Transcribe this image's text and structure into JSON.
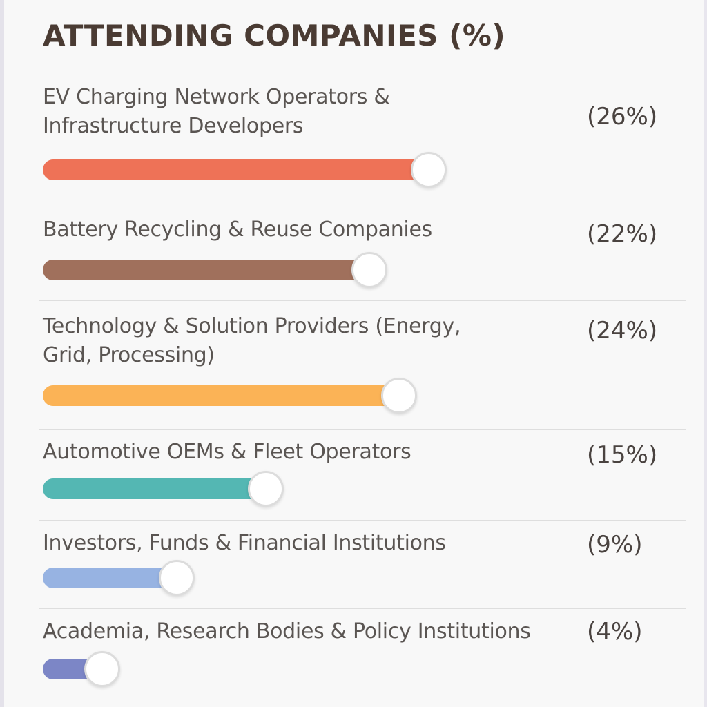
{
  "title": "ATTENDING COMPANIES (%)",
  "chart_data": {
    "type": "bar",
    "title": "ATTENDING COMPANIES (%)",
    "categories": [
      "EV Charging Network Operators & Infrastructure Developers",
      "Battery Recycling & Reuse Companies",
      "Technology & Solution Providers (Energy, Grid, Processing)",
      "Automotive OEMs & Fleet Operators",
      "Investors, Funds & Financial Institutions",
      "Academia, Research Bodies & Policy Institutions"
    ],
    "values": [
      26,
      22,
      24,
      15,
      9,
      4
    ],
    "value_labels": [
      "(26%)",
      "(22%)",
      "(24%)",
      "(15%)",
      "(9%)",
      "(4%)"
    ],
    "label_lines": [
      [
        "EV Charging Network Operators &",
        "Infrastructure Developers"
      ],
      [
        "Battery Recycling & Reuse Companies"
      ],
      [
        "Technology & Solution Providers (Energy,",
        "Grid, Processing)"
      ],
      [
        "Automotive OEMs & Fleet Operators"
      ],
      [
        "Investors, Funds & Financial Institutions"
      ],
      [
        "Academia, Research Bodies & Policy Institutions"
      ]
    ],
    "colors": [
      "#ee7257",
      "#a0705c",
      "#fbb356",
      "#54b7b3",
      "#97b3e2",
      "#7c86c6"
    ],
    "grid": false,
    "legend": "none",
    "orientation": "horizontal"
  }
}
